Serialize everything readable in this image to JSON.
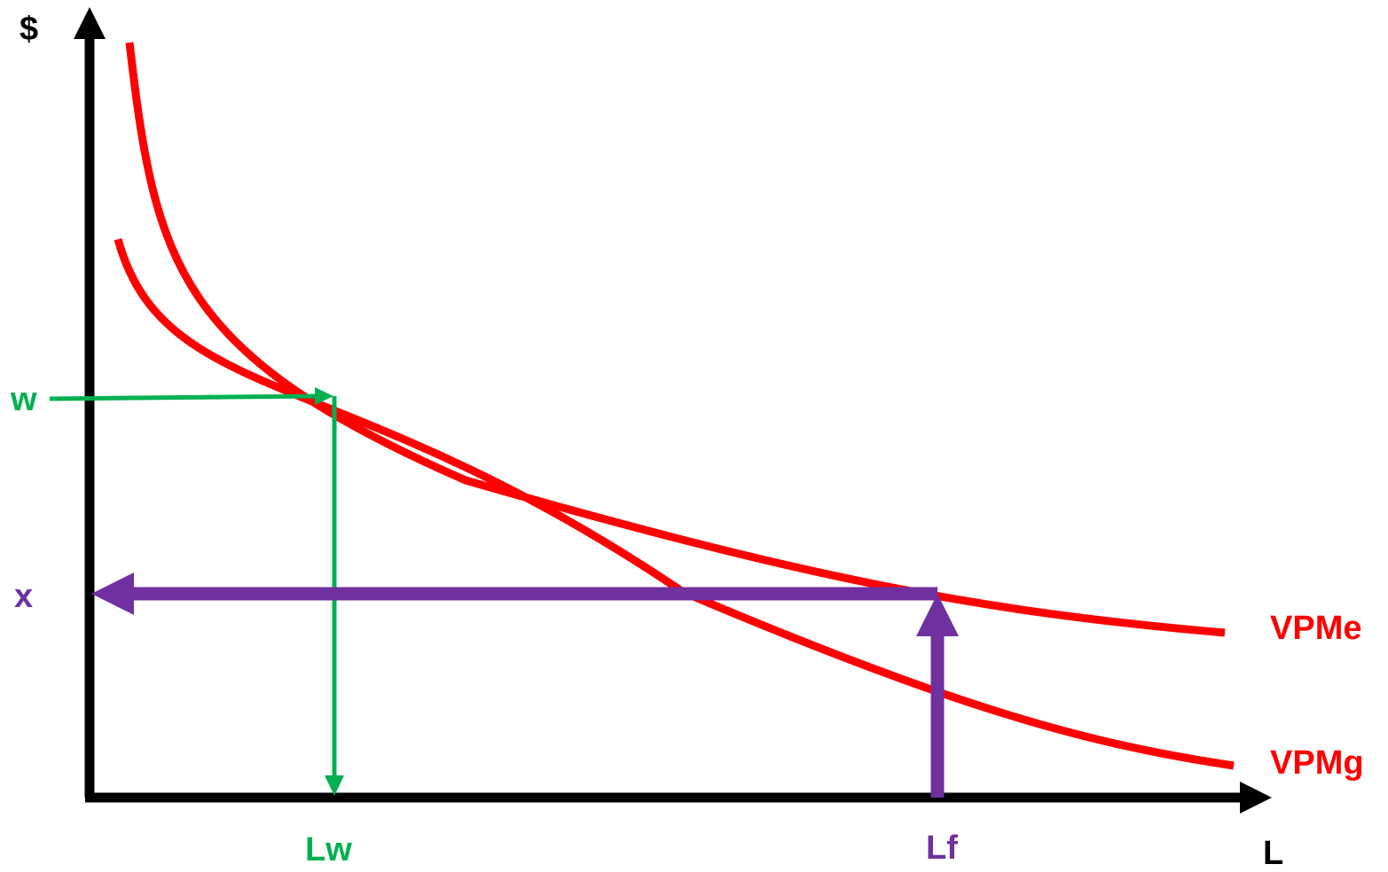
{
  "axes": {
    "y_label": "$",
    "x_label": "L"
  },
  "curves": [
    {
      "id": "vpme",
      "label": "VPMe",
      "color": "#ff0000"
    },
    {
      "id": "vpmg",
      "label": "VPMg",
      "color": "#ff0000"
    }
  ],
  "levels": {
    "w": {
      "label": "w",
      "color": "#00b050"
    },
    "x": {
      "label": "x",
      "color": "#7030a0"
    }
  },
  "quantities": {
    "lw": {
      "label": "Lw",
      "color": "#00b050"
    },
    "lf": {
      "label": "Lf",
      "color": "#7030a0"
    }
  },
  "colors": {
    "axis": "#000000",
    "curve": "#ff0000",
    "green": "#00b050",
    "purple": "#7030a0",
    "dashed": "#44546a"
  }
}
